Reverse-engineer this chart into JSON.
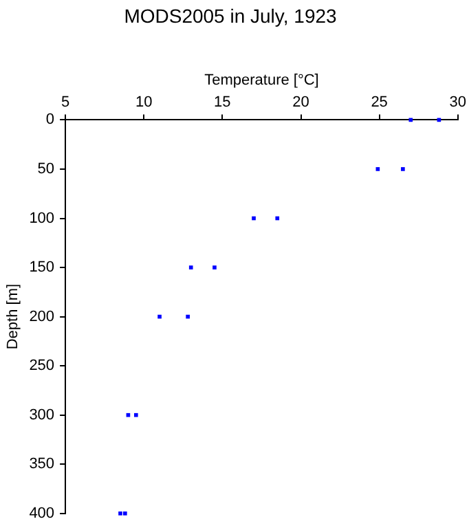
{
  "chart_data": {
    "type": "scatter",
    "title": "MODS2005 in July, 1923",
    "xlabel": "Temperature [°C]",
    "ylabel": "Depth [m]",
    "x": [
      27.0,
      28.8,
      24.9,
      26.5,
      17.0,
      18.5,
      13.0,
      14.5,
      11.0,
      12.8,
      9.0,
      9.5,
      8.5,
      8.8
    ],
    "series": [
      {
        "color": "#0000ff",
        "values": [
          0,
          0,
          50,
          50,
          100,
          100,
          150,
          150,
          200,
          200,
          300,
          300,
          400,
          400
        ]
      }
    ],
    "xlim": [
      5,
      30
    ],
    "xticks": [
      5,
      10,
      15,
      20,
      25,
      30
    ],
    "ylim": [
      400,
      0
    ],
    "yticks": [
      0,
      50,
      100,
      150,
      200,
      250,
      300,
      350,
      400
    ],
    "grid": false,
    "legend": false,
    "marker": "square"
  }
}
